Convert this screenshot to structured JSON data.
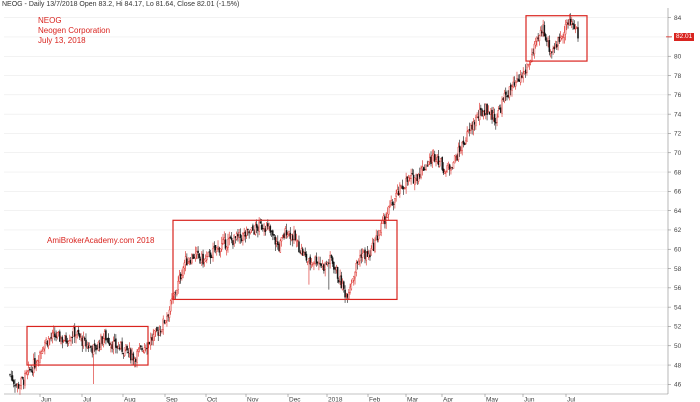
{
  "header": {
    "text": "NEOG - Daily 13/7/2018 Open 83.2, Hi 84.17, Lo 81.64, Close 82.01 (-1.5%)"
  },
  "annotation": {
    "ticker": "NEOG",
    "company": "Neogen Corporation",
    "date": "July 13, 2018"
  },
  "watermark": "AmiBrokerAcademy.com  2018",
  "last_price_tag": "82.01",
  "colors": {
    "up": "#d9241f",
    "down": "#111111",
    "box": "#d9241f",
    "grid": "#e6e6e6"
  },
  "chart_data": {
    "type": "candlestick",
    "title": "",
    "ylim": [
      45,
      85
    ],
    "y_ticks": [
      46,
      48,
      50,
      52,
      54,
      56,
      58,
      60,
      62,
      64,
      66,
      68,
      70,
      72,
      74,
      76,
      78,
      80,
      82,
      84
    ],
    "x_ticks": [
      "Jun",
      "Jul",
      "Aug",
      "Sep",
      "Oct",
      "Nov",
      "Dec",
      "2018",
      "Feb",
      "Mar",
      "Apr",
      "May",
      "Jun",
      "Jul"
    ],
    "last_close": 82.01,
    "monthly_closes_approx": [
      {
        "month": "2017-05",
        "close": 47.0
      },
      {
        "month": "2017-06",
        "close": 50.5
      },
      {
        "month": "2017-07",
        "close": 51.0
      },
      {
        "month": "2017-08",
        "close": 49.5
      },
      {
        "month": "2017-09",
        "close": 54.5
      },
      {
        "month": "2017-10",
        "close": 60.0
      },
      {
        "month": "2017-11",
        "close": 61.0
      },
      {
        "month": "2017-12",
        "close": 61.5
      },
      {
        "month": "2018-01",
        "close": 58.5
      },
      {
        "month": "2018-02",
        "close": 59.5
      },
      {
        "month": "2018-03",
        "close": 64.0
      },
      {
        "month": "2018-04",
        "close": 69.0
      },
      {
        "month": "2018-05",
        "close": 75.0
      },
      {
        "month": "2018-06",
        "close": 82.5
      },
      {
        "month": "2018-07",
        "close": 82.01
      }
    ],
    "boxes": [
      {
        "from": "Jun",
        "to": "Aug",
        "low": 48.0,
        "high": 52.0
      },
      {
        "from": "Sep",
        "to": "Feb",
        "low": 54.8,
        "high": 63.0
      },
      {
        "from": "Jun",
        "to": "Jul",
        "low": 79.5,
        "high": 84.2
      }
    ]
  }
}
